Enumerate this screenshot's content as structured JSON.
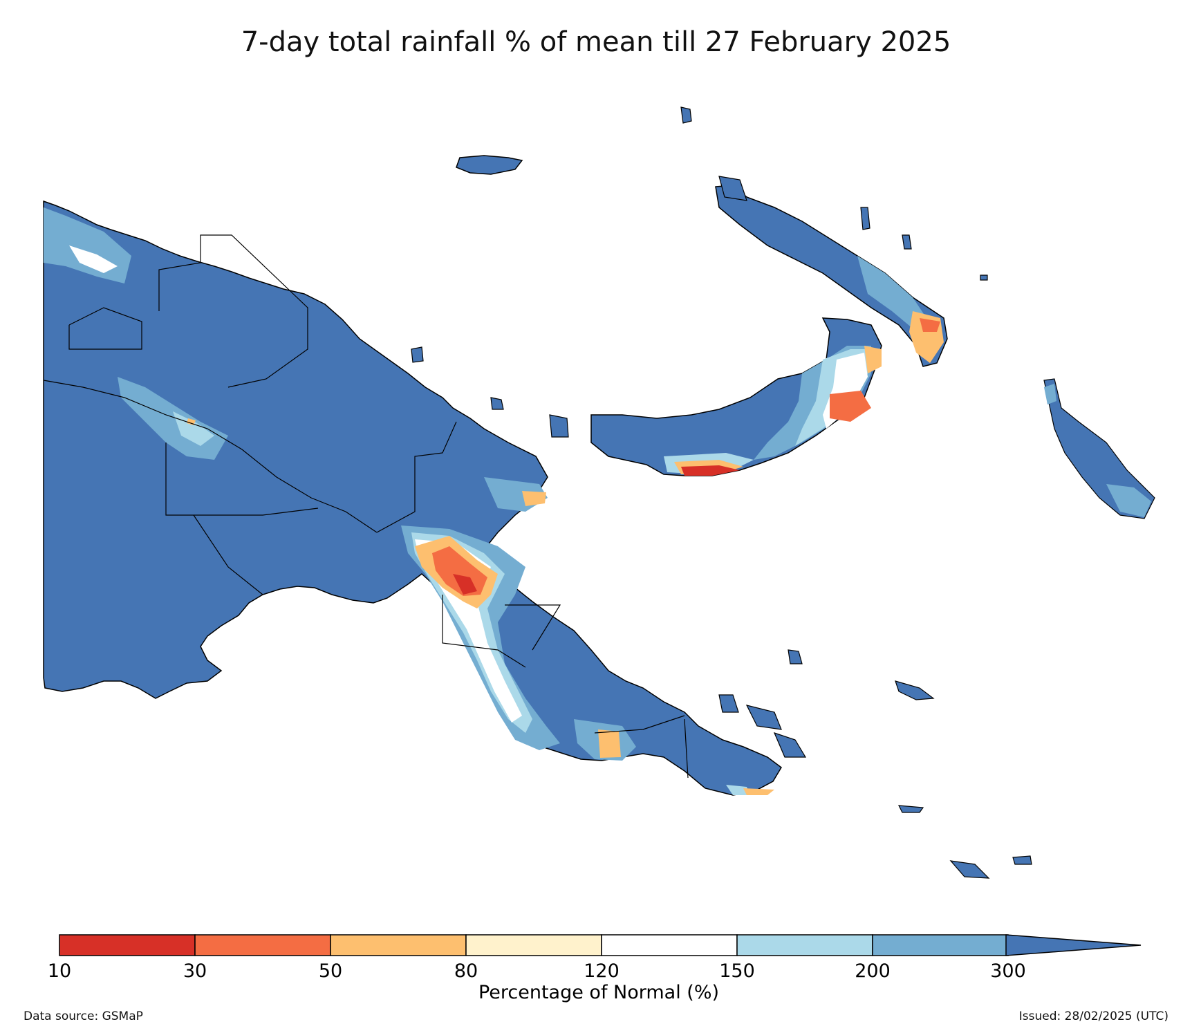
{
  "title": "7-day total rainfall % of mean till 27 February 2025",
  "colorbar": {
    "label": "Percentage of Normal (%)",
    "ticks": [
      "10",
      "30",
      "50",
      "80",
      "120",
      "150",
      "200",
      "300"
    ],
    "bins": [
      {
        "range": "10-30",
        "color": "#d73027"
      },
      {
        "range": "30-50",
        "color": "#f46d43"
      },
      {
        "range": "50-80",
        "color": "#fdbf6f"
      },
      {
        "range": "80-120",
        "color": "#fff2cc"
      },
      {
        "range": "120-150",
        "color": "#ffffff"
      },
      {
        "range": "150-200",
        "color": "#abd9e9"
      },
      {
        "range": "200-300",
        "color": "#74add1"
      },
      {
        "range": ">300",
        "color": "#4575b4"
      }
    ],
    "extend": "max"
  },
  "map": {
    "region": "Papua New Guinea",
    "dominant_color": "#4575b4",
    "dry_areas": [
      "south coast of New Britain",
      "Morobe / Eastern Highlands interior",
      "eastern tip of New Ireland",
      "southern Central coast"
    ]
  },
  "footer": {
    "source": "Data source: GSMaP",
    "issued": "Issued: 28/02/2025 (UTC)"
  }
}
